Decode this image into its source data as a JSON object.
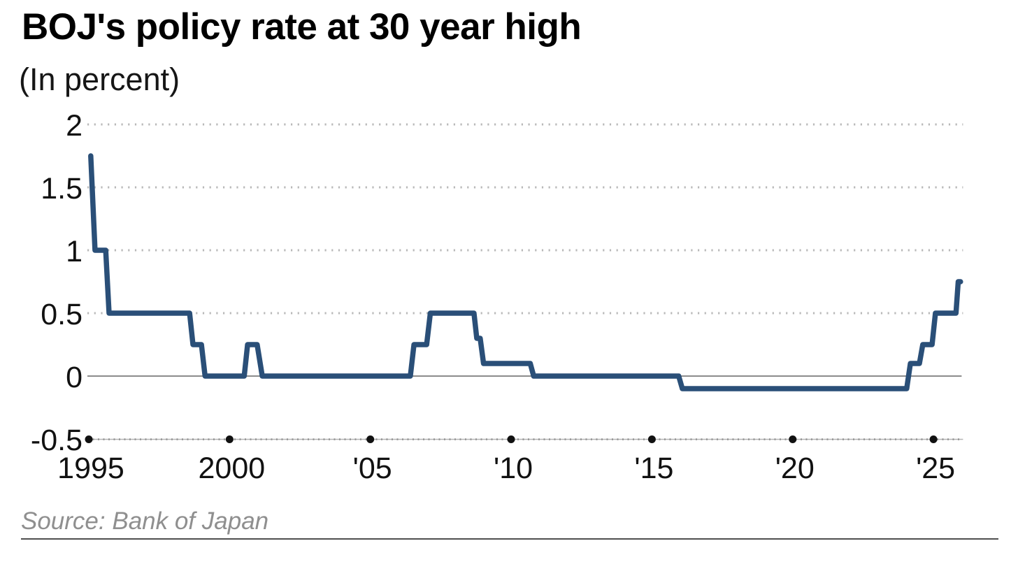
{
  "chart_data": {
    "type": "line",
    "line_style": "step",
    "title": "BOJ's policy rate at 30 year high",
    "subtitle": "(In percent)",
    "source": "Source: Bank of Japan",
    "series": [
      {
        "name": "BOJ policy rate (percent)",
        "points": [
          [
            1995.07,
            1.75
          ],
          [
            1995.22,
            1.0
          ],
          [
            1995.6,
            1.0
          ],
          [
            1995.72,
            0.5
          ],
          [
            1998.58,
            0.5
          ],
          [
            1998.7,
            0.25
          ],
          [
            1999.0,
            0.25
          ],
          [
            1999.13,
            0.0
          ],
          [
            2000.52,
            0.0
          ],
          [
            2000.64,
            0.25
          ],
          [
            2000.98,
            0.25
          ],
          [
            2001.16,
            0.0
          ],
          [
            2006.42,
            0.0
          ],
          [
            2006.55,
            0.25
          ],
          [
            2007.0,
            0.25
          ],
          [
            2007.13,
            0.5
          ],
          [
            2008.68,
            0.5
          ],
          [
            2008.78,
            0.3
          ],
          [
            2008.9,
            0.3
          ],
          [
            2009.02,
            0.1
          ],
          [
            2010.68,
            0.1
          ],
          [
            2010.8,
            0.0
          ],
          [
            2015.95,
            0.0
          ],
          [
            2016.08,
            -0.1
          ],
          [
            2024.05,
            -0.1
          ],
          [
            2024.18,
            0.1
          ],
          [
            2024.5,
            0.1
          ],
          [
            2024.62,
            0.25
          ],
          [
            2024.95,
            0.25
          ],
          [
            2025.07,
            0.5
          ],
          [
            2025.8,
            0.5
          ],
          [
            2025.88,
            0.75
          ],
          [
            2025.96,
            0.75
          ]
        ]
      }
    ],
    "x_axis": {
      "range": [
        1994.95,
        2026.05
      ],
      "ticks": [
        1995,
        2000,
        2005,
        2010,
        2015,
        2020,
        2025
      ],
      "tick_labels": [
        "1995",
        "2000",
        "'05",
        "'10",
        "'15",
        "'20",
        "'25"
      ]
    },
    "y_axis": {
      "range": [
        -0.5,
        2
      ],
      "ticks": [
        2,
        1.5,
        1,
        0.5,
        0,
        -0.5
      ],
      "tick_labels": [
        "2",
        "1.5",
        "1",
        "0.5",
        "0",
        "-0.5"
      ],
      "dotted_gridlines": [
        2,
        1.5,
        1,
        0.5
      ],
      "zero_line": 0
    },
    "legend": "none",
    "colors": {
      "line": "#2a4f78",
      "grid_dots": "#b8b8b8",
      "zero_line": "#8c8c8c",
      "axis_line": "#b4b4b4",
      "axis_dots": "#8f8f8f",
      "tick_dot": "#111111",
      "tick_text": "#111111",
      "source_text": "#8f8f8f"
    }
  }
}
